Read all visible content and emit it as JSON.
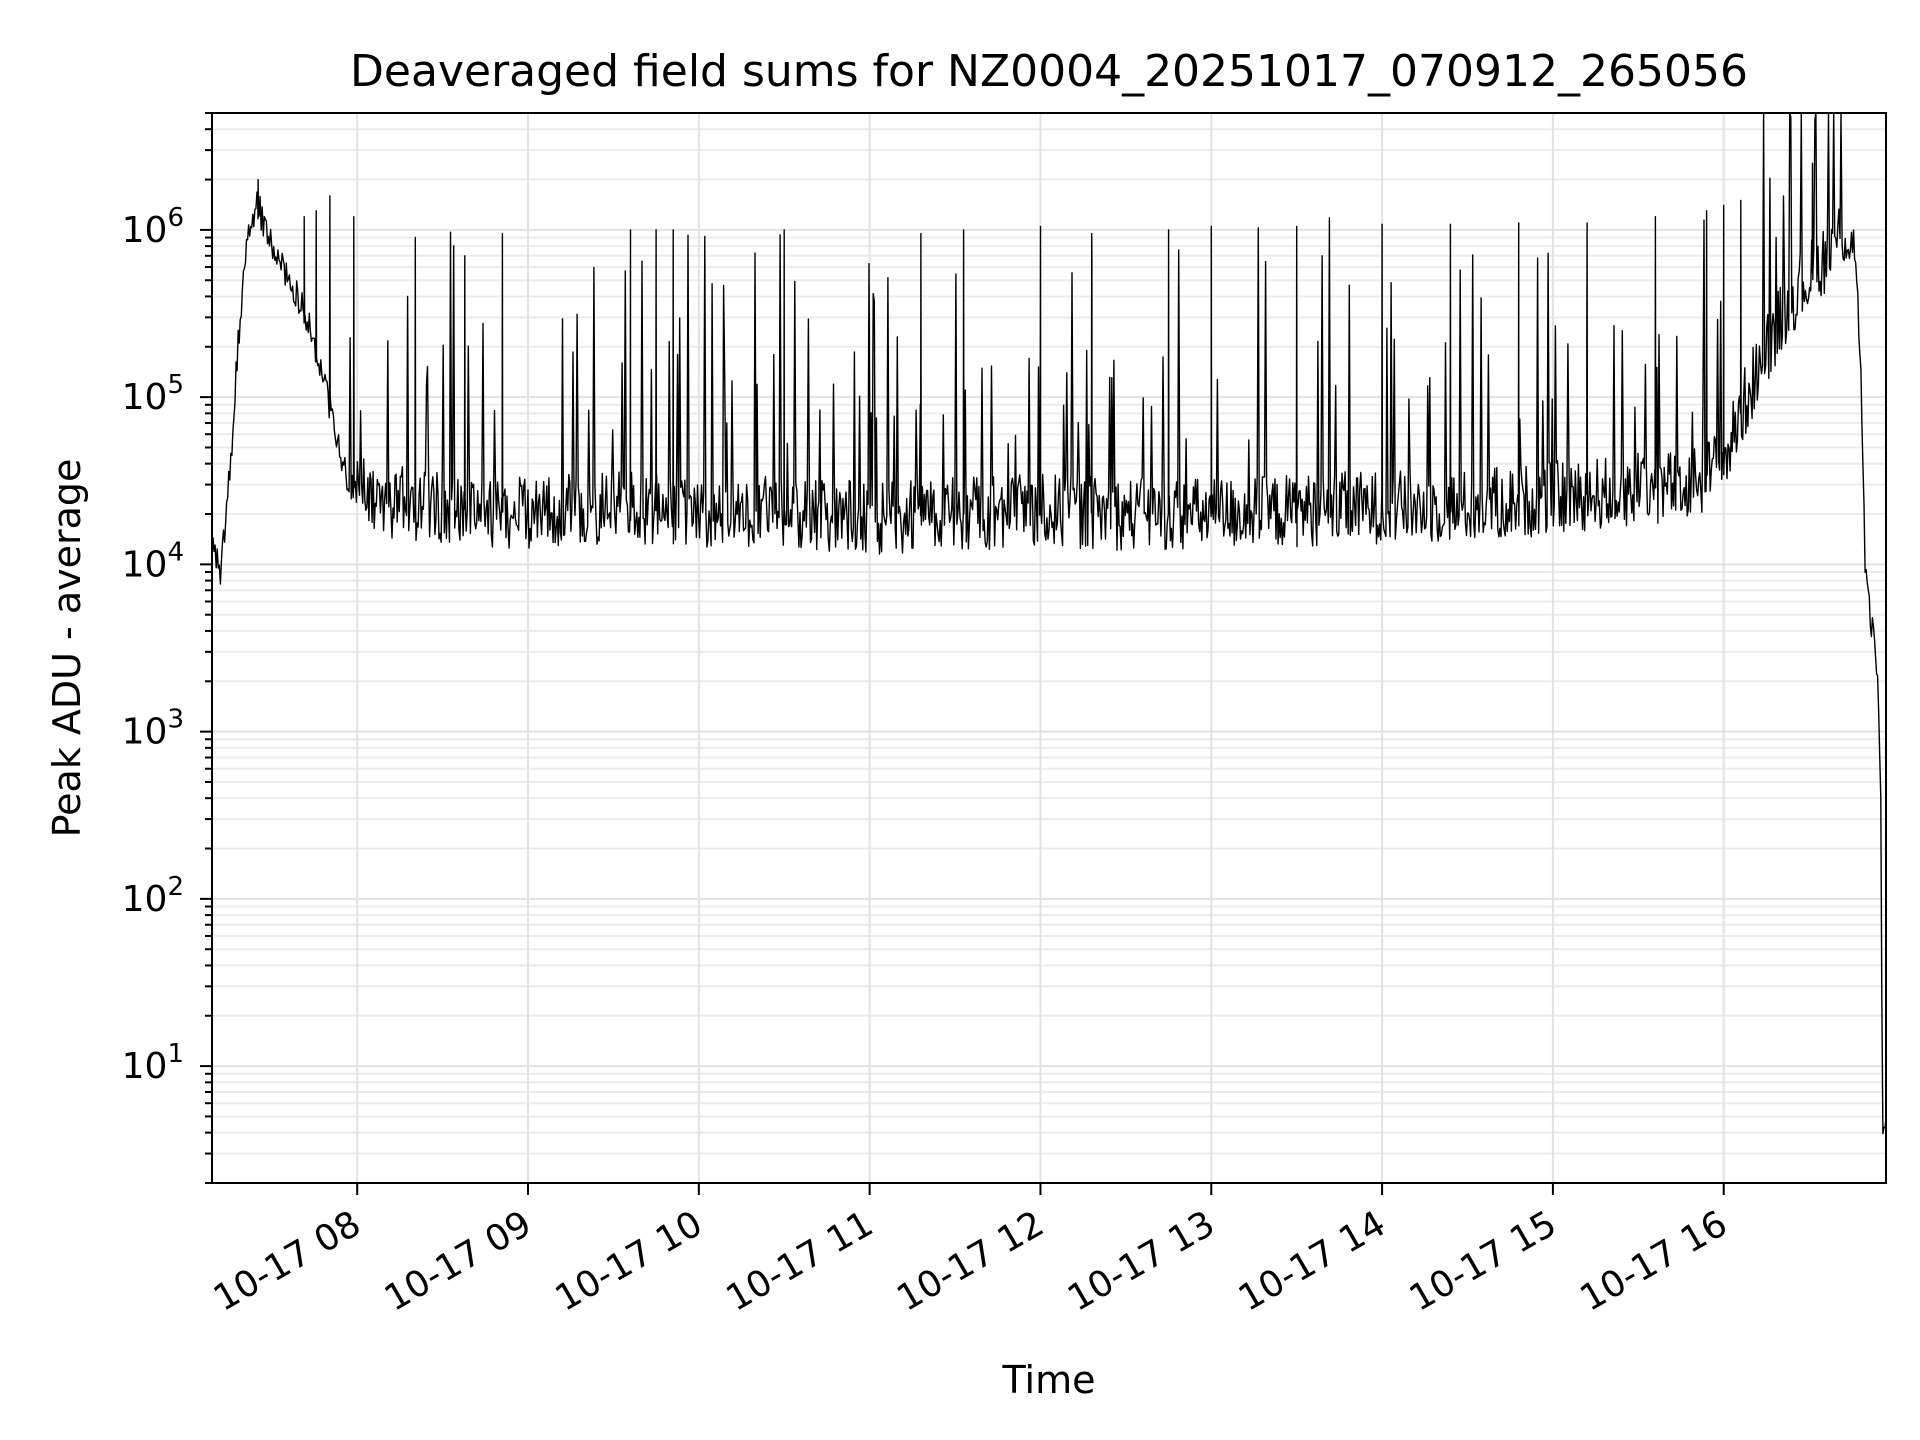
{
  "chart_data": {
    "type": "line",
    "title": "Deaveraged field sums for NZ0004_20251017_070912_265056",
    "xlabel": "Time",
    "ylabel": "Peak ADU - average",
    "yscale": "log",
    "ylim": [
      2,
      5000000
    ],
    "x_unit": "hours since 2025-10-17 00:00",
    "xlim": [
      7.15,
      16.95
    ],
    "x_ticks": [
      {
        "value": 8,
        "label": "10-17 08"
      },
      {
        "value": 9,
        "label": "10-17 09"
      },
      {
        "value": 10,
        "label": "10-17 10"
      },
      {
        "value": 11,
        "label": "10-17 11"
      },
      {
        "value": 12,
        "label": "10-17 12"
      },
      {
        "value": 13,
        "label": "10-17 13"
      },
      {
        "value": 14,
        "label": "10-17 14"
      },
      {
        "value": 15,
        "label": "10-17 15"
      },
      {
        "value": 16,
        "label": "10-17 16"
      }
    ],
    "y_ticks": [
      {
        "value": 10,
        "base": "10",
        "exp": "1"
      },
      {
        "value": 100,
        "base": "10",
        "exp": "2"
      },
      {
        "value": 1000,
        "base": "10",
        "exp": "3"
      },
      {
        "value": 10000,
        "base": "10",
        "exp": "4"
      },
      {
        "value": 100000,
        "base": "10",
        "exp": "5"
      },
      {
        "value": 1000000,
        "base": "10",
        "exp": "6"
      }
    ],
    "grid": true,
    "series": [
      {
        "name": "Peak ADU - average",
        "color": "#000000",
        "baseline_points": [
          [
            7.15,
            12000
          ],
          [
            7.2,
            9000
          ],
          [
            7.25,
            30000
          ],
          [
            7.3,
            200000
          ],
          [
            7.35,
            900000
          ],
          [
            7.42,
            1400000
          ],
          [
            7.5,
            800000
          ],
          [
            7.6,
            500000
          ],
          [
            7.7,
            300000
          ],
          [
            7.8,
            130000
          ],
          [
            7.87,
            60000
          ],
          [
            7.95,
            30000
          ],
          [
            8.1,
            24000
          ],
          [
            8.5,
            22000
          ],
          [
            9.0,
            20000
          ],
          [
            9.5,
            22000
          ],
          [
            10.0,
            20000
          ],
          [
            10.5,
            21000
          ],
          [
            11.0,
            19000
          ],
          [
            11.5,
            20000
          ],
          [
            12.0,
            21000
          ],
          [
            12.5,
            20000
          ],
          [
            13.0,
            20000
          ],
          [
            13.5,
            21000
          ],
          [
            14.0,
            22000
          ],
          [
            14.5,
            22000
          ],
          [
            15.0,
            25000
          ],
          [
            15.5,
            28000
          ],
          [
            15.8,
            30000
          ],
          [
            16.0,
            40000
          ],
          [
            16.1,
            80000
          ],
          [
            16.25,
            200000
          ],
          [
            16.4,
            400000
          ],
          [
            16.55,
            600000
          ],
          [
            16.7,
            1000000
          ],
          [
            16.76,
            800000
          ],
          [
            16.8,
            200000
          ],
          [
            16.83,
            8000
          ],
          [
            16.87,
            4000
          ],
          [
            16.9,
            2500
          ],
          [
            16.92,
            300
          ],
          [
            16.93,
            4
          ],
          [
            16.95,
            4
          ]
        ],
        "spikes": [
          {
            "x": 7.42,
            "y": 2000000
          },
          {
            "x": 7.69,
            "y": 1200000
          },
          {
            "x": 7.76,
            "y": 1300000
          },
          {
            "x": 7.84,
            "y": 1600000
          },
          {
            "x": 7.98,
            "y": 1200000
          },
          {
            "x": 8.34,
            "y": 900000
          },
          {
            "x": 8.63,
            "y": 700000
          },
          {
            "x": 8.85,
            "y": 950000
          },
          {
            "x": 9.6,
            "y": 1000000
          },
          {
            "x": 9.75,
            "y": 1000000
          },
          {
            "x": 9.85,
            "y": 1000000
          },
          {
            "x": 10.5,
            "y": 1000000
          },
          {
            "x": 11.3,
            "y": 950000
          },
          {
            "x": 11.55,
            "y": 1000000
          },
          {
            "x": 12.0,
            "y": 1050000
          },
          {
            "x": 12.3,
            "y": 950000
          },
          {
            "x": 12.75,
            "y": 1000000
          },
          {
            "x": 13.0,
            "y": 1050000
          },
          {
            "x": 13.5,
            "y": 1050000
          },
          {
            "x": 14.0,
            "y": 1080000
          },
          {
            "x": 14.4,
            "y": 1080000
          },
          {
            "x": 14.8,
            "y": 1100000
          },
          {
            "x": 15.2,
            "y": 1100000
          },
          {
            "x": 15.6,
            "y": 1200000
          },
          {
            "x": 15.9,
            "y": 1300000
          },
          {
            "x": 16.0,
            "y": 1400000
          },
          {
            "x": 16.1,
            "y": 1500000
          },
          {
            "x": 16.52,
            "y": 2500000
          }
        ]
      }
    ]
  }
}
